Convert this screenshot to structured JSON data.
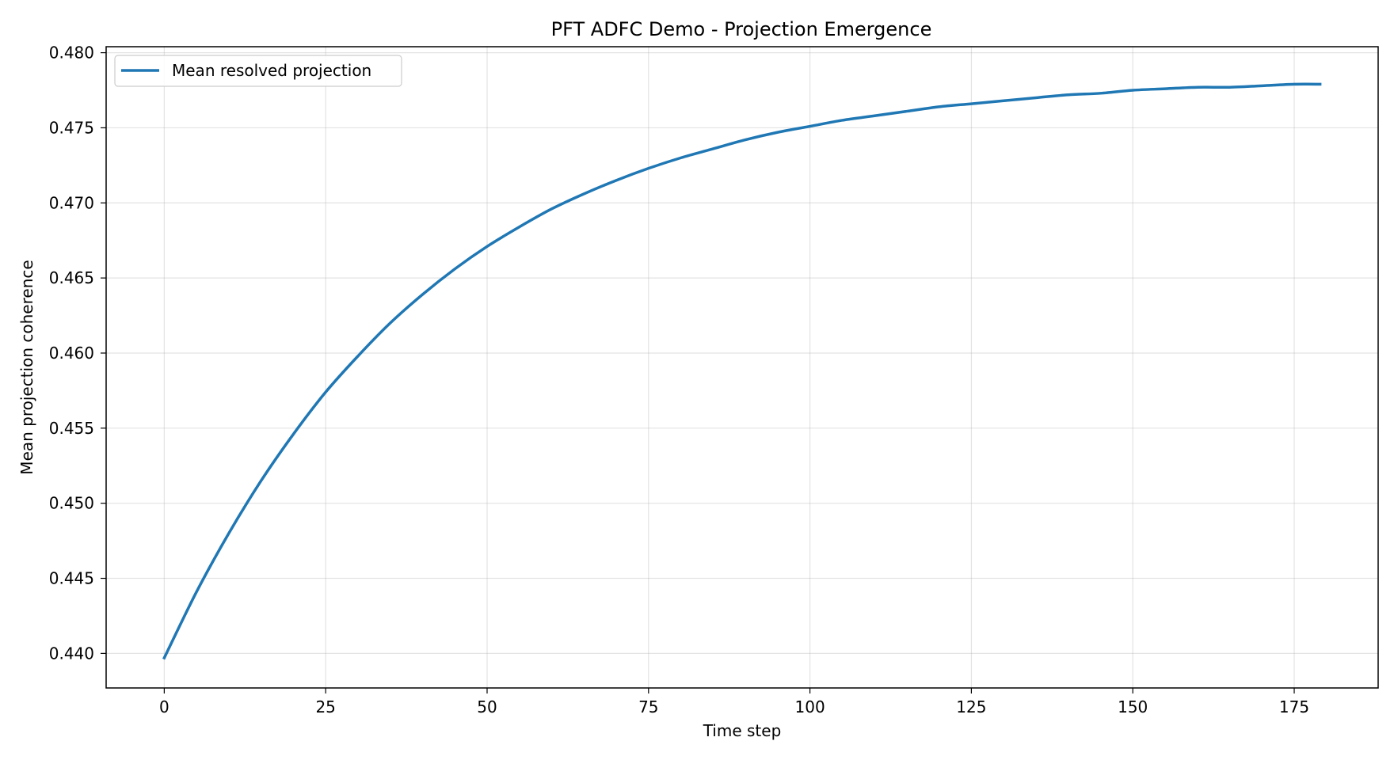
{
  "chart_data": {
    "type": "line",
    "title": "PFT ADFC Demo - Projection Emergence",
    "xlabel": "Time step",
    "ylabel": "Mean projection coherence",
    "xlim": [
      -9,
      188
    ],
    "ylim": [
      0.4377,
      0.4804
    ],
    "x_ticks": [
      0,
      25,
      50,
      75,
      100,
      125,
      150,
      175
    ],
    "x_tick_labels": [
      "0",
      "25",
      "50",
      "75",
      "100",
      "125",
      "150",
      "175"
    ],
    "y_ticks": [
      0.44,
      0.445,
      0.45,
      0.455,
      0.46,
      0.465,
      0.47,
      0.475,
      0.48
    ],
    "y_tick_labels": [
      "0.440",
      "0.445",
      "0.450",
      "0.455",
      "0.460",
      "0.465",
      "0.470",
      "0.475",
      "0.480"
    ],
    "grid": true,
    "legend_position": "top-left",
    "series": [
      {
        "name": "Mean resolved projection",
        "color": "#1f77b4",
        "x": [
          0,
          5,
          10,
          15,
          20,
          25,
          30,
          35,
          40,
          45,
          50,
          55,
          60,
          65,
          70,
          75,
          80,
          85,
          90,
          95,
          100,
          105,
          110,
          115,
          120,
          125,
          130,
          135,
          140,
          145,
          150,
          155,
          160,
          165,
          170,
          175,
          179
        ],
        "y": [
          0.4397,
          0.4441,
          0.448,
          0.4515,
          0.4546,
          0.4574,
          0.4598,
          0.462,
          0.4639,
          0.4656,
          0.4671,
          0.4684,
          0.4696,
          0.4706,
          0.4715,
          0.4723,
          0.473,
          0.4736,
          0.4742,
          0.4747,
          0.4751,
          0.4755,
          0.4758,
          0.4761,
          0.4764,
          0.4766,
          0.4768,
          0.477,
          0.4772,
          0.4773,
          0.4775,
          0.4776,
          0.4777,
          0.4777,
          0.4778,
          0.4779,
          0.4779
        ]
      }
    ]
  }
}
